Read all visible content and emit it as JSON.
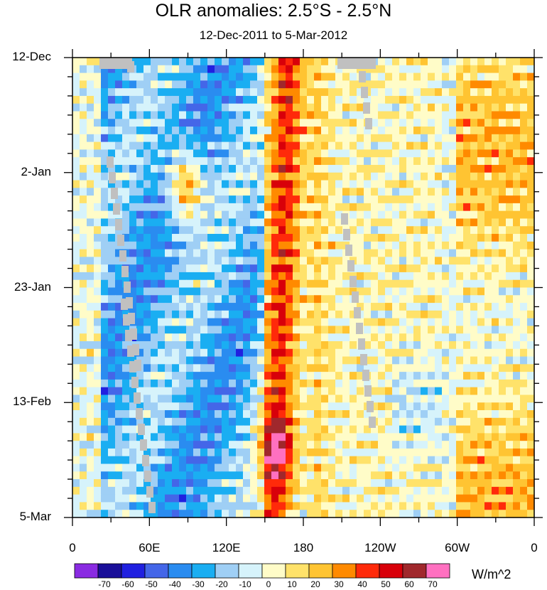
{
  "chart_data": {
    "type": "heatmap",
    "title": "OLR anomalies: 2.5°S - 2.5°N",
    "subtitle": "12-Dec-2011 to 5-Mar-2012",
    "x_tick_labels": [
      "0",
      "60E",
      "120E",
      "180",
      "120W",
      "60W",
      "0"
    ],
    "x_tick_values_deg_east": [
      0,
      60,
      120,
      180,
      240,
      300,
      360
    ],
    "x_range_deg_east": [
      0,
      360
    ],
    "y_tick_labels": [
      "12-Dec",
      "2-Jan",
      "23-Jan",
      "13-Feb",
      "5-Mar"
    ],
    "y_range": [
      "12-Dec-2011",
      "5-Mar-2012"
    ],
    "y_tick_interval_days": 21,
    "colorbar_labels": [
      "-70",
      "-60",
      "-50",
      "-40",
      "-30",
      "-20",
      "-10",
      "0",
      "10",
      "20",
      "30",
      "40",
      "50",
      "60",
      "70"
    ],
    "colorbar_colors": [
      "#8a2be2",
      "#1a0f99",
      "#2020e0",
      "#4466e8",
      "#2a8cf0",
      "#1aaef2",
      "#9fcff5",
      "#d6f3fb",
      "#fffcc8",
      "#ffe26a",
      "#ffc432",
      "#ff8a00",
      "#ff2a0a",
      "#d8000a",
      "#a0282c",
      "#ff70c0"
    ],
    "units": "W/m^2",
    "missing_color": "#c0c0c0",
    "pattern_notes": "Strong positive anomalies near 150E-180 throughout the period; negative anomalies over the Indian Ocean and western Pacific; weak anomalies over the eastern Pacific."
  }
}
